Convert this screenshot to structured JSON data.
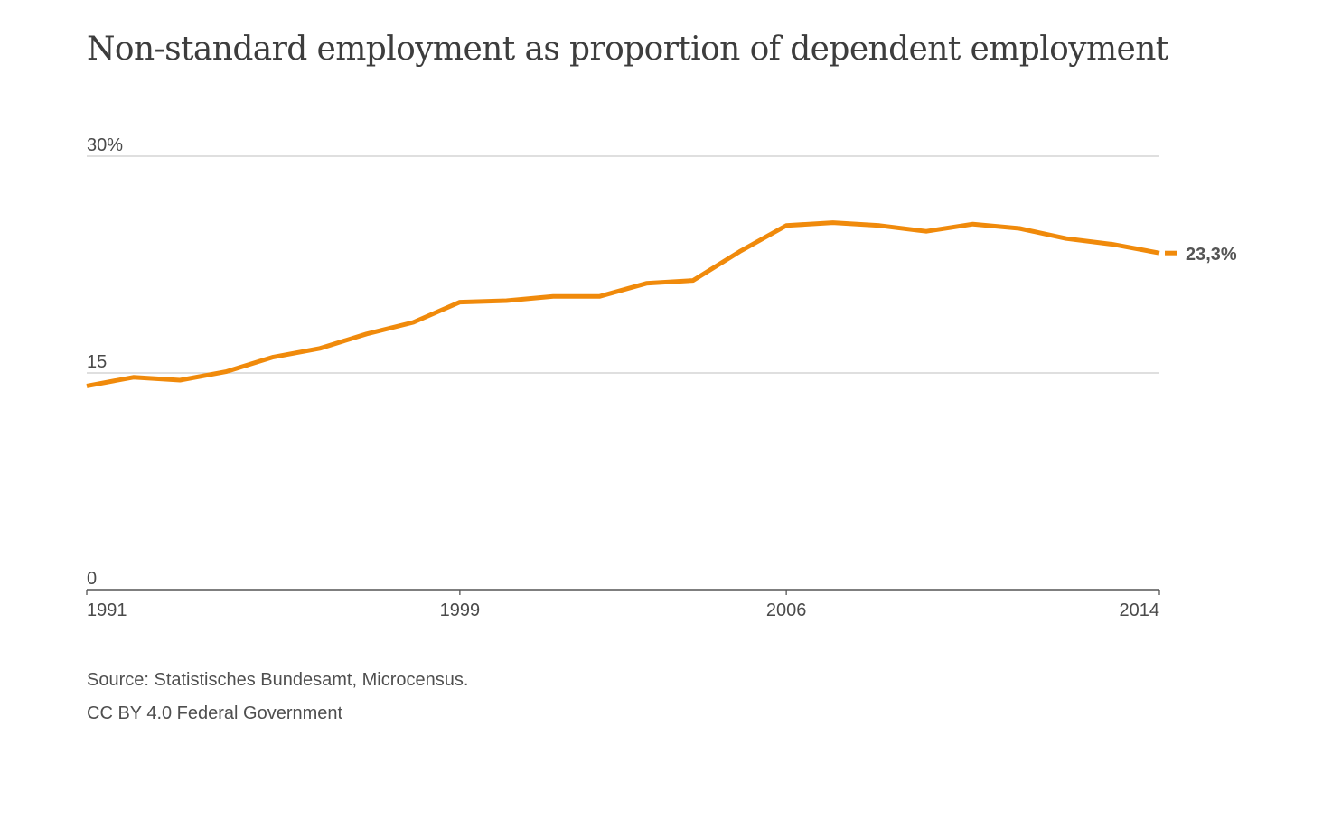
{
  "title": "Non-standard employment as proportion of dependent employment",
  "source_lines": [
    "Source: Statistisches Bundesamt, Microcensus.",
    "CC BY 4.0 Federal Government"
  ],
  "end_label": "23,3%",
  "colors": {
    "line": "#f08a0b",
    "grid": "#cccccc",
    "axis": "#555555",
    "text": "#4a4a4a"
  },
  "chart_data": {
    "type": "line",
    "title": "Non-standard employment as proportion of dependent employment",
    "xlabel": "",
    "ylabel": "",
    "ylim": [
      0,
      30
    ],
    "xlim": [
      1991,
      2014
    ],
    "y_ticks": [
      {
        "value": 0,
        "label": "0"
      },
      {
        "value": 15,
        "label": "15"
      },
      {
        "value": 30,
        "label": "30%"
      }
    ],
    "x_ticks": [
      {
        "value": 1991,
        "label": "1991"
      },
      {
        "value": 1999,
        "label": "1999"
      },
      {
        "value": 2006,
        "label": "2006"
      },
      {
        "value": 2014,
        "label": "2014"
      }
    ],
    "grid": true,
    "x": [
      1991,
      1992,
      1993,
      1994,
      1995,
      1996,
      1997,
      1998,
      1999,
      2000,
      2001,
      2002,
      2003,
      2004,
      2005,
      2006,
      2007,
      2008,
      2009,
      2010,
      2011,
      2012,
      2013,
      2014
    ],
    "values": [
      14.1,
      14.7,
      14.5,
      15.1,
      16.1,
      16.7,
      17.7,
      18.5,
      19.9,
      20.0,
      20.3,
      20.3,
      21.2,
      21.4,
      23.4,
      25.2,
      25.4,
      25.2,
      24.8,
      25.3,
      25.0,
      24.3,
      23.9,
      23.3
    ],
    "annotations": [
      {
        "x": 2014,
        "y": 23.3,
        "label": "23,3%"
      }
    ]
  }
}
